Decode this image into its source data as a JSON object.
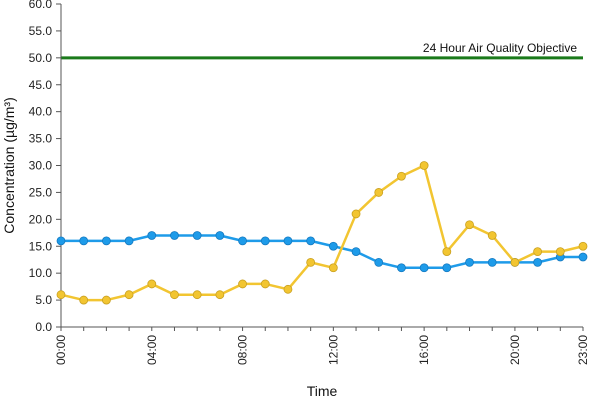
{
  "chart_data": {
    "type": "line",
    "title": "",
    "xlabel": "Time",
    "ylabel": "Concentration (µg/m³)",
    "ylim": [
      0,
      60
    ],
    "y_ticks": [
      "0.0",
      "5.0",
      "10.0",
      "15.0",
      "20.0",
      "25.0",
      "30.0",
      "35.0",
      "40.0",
      "45.0",
      "50.0",
      "55.0",
      "60.0"
    ],
    "y_tick_values": [
      0,
      5,
      10,
      15,
      20,
      25,
      30,
      35,
      40,
      45,
      50,
      55,
      60
    ],
    "x_tick_labels": [
      "00:00",
      "04:00",
      "08:00",
      "12:00",
      "16:00",
      "20:00",
      "23:00"
    ],
    "x_tick_hours": [
      0,
      4,
      8,
      12,
      16,
      20,
      23
    ],
    "x": [
      0,
      1,
      2,
      3,
      4,
      5,
      6,
      7,
      8,
      9,
      10,
      11,
      12,
      13,
      14,
      15,
      16,
      17,
      18,
      19,
      20,
      21,
      22,
      23
    ],
    "grid": false,
    "legend": "none",
    "series": [
      {
        "color": "#1e9be9",
        "values": [
          16,
          16,
          16,
          16,
          17,
          17,
          17,
          17,
          16,
          16,
          16,
          16,
          15,
          14,
          12,
          11,
          11,
          11,
          12,
          12,
          12,
          12,
          13,
          13
        ]
      },
      {
        "color": "#f2c531",
        "values": [
          6,
          5,
          5,
          6,
          8,
          6,
          6,
          6,
          8,
          8,
          7,
          12,
          11,
          21,
          25,
          28,
          30,
          14,
          19,
          17,
          12,
          14,
          14,
          15
        ]
      }
    ],
    "reference_line": {
      "value": 50,
      "label": "24 Hour Air Quality Objective",
      "color": "#1b7a1b"
    }
  }
}
